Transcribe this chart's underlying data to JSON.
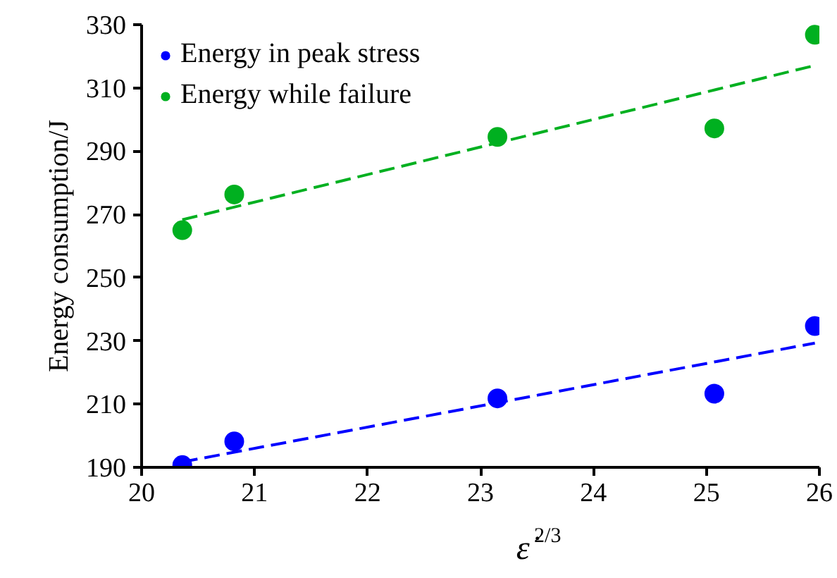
{
  "chart_data": {
    "type": "scatter",
    "xlabel": "ε̇$^{2/3}$",
    "ylabel": "Energy consumption/J",
    "xlim": [
      20,
      26
    ],
    "xticks": [
      20,
      21,
      22,
      23,
      24,
      25,
      26
    ],
    "ylim": [
      190,
      330
    ],
    "yticks": [
      190,
      210,
      230,
      250,
      270,
      290,
      310,
      330
    ],
    "grid": false,
    "legend": "top left",
    "marker": "circle",
    "series": [
      {
        "name": "Energy in peak stress",
        "color": "#0000ff",
        "x": [
          20.36,
          20.82,
          23.15,
          25.07,
          25.96
        ],
        "values": [
          190.7,
          198.2,
          211.8,
          213.3,
          234.7
        ]
      },
      {
        "name": "Energy while failure",
        "color": "#00b020",
        "x": [
          20.36,
          20.82,
          23.15,
          25.07,
          25.96
        ],
        "values": [
          265.0,
          276.3,
          294.5,
          297.2,
          326.8
        ]
      },
      {
        "type": "line",
        "line_style": "dashed",
        "marker": "none",
        "color": "#0000ff",
        "x": [
          20.36,
          25.96
        ],
        "values": [
          191.7,
          229.3
        ]
      },
      {
        "type": "line",
        "line_style": "dashed",
        "marker": "none",
        "color": "#00b020",
        "x": [
          20.36,
          25.96
        ],
        "values": [
          268.3,
          317.1
        ]
      }
    ]
  }
}
